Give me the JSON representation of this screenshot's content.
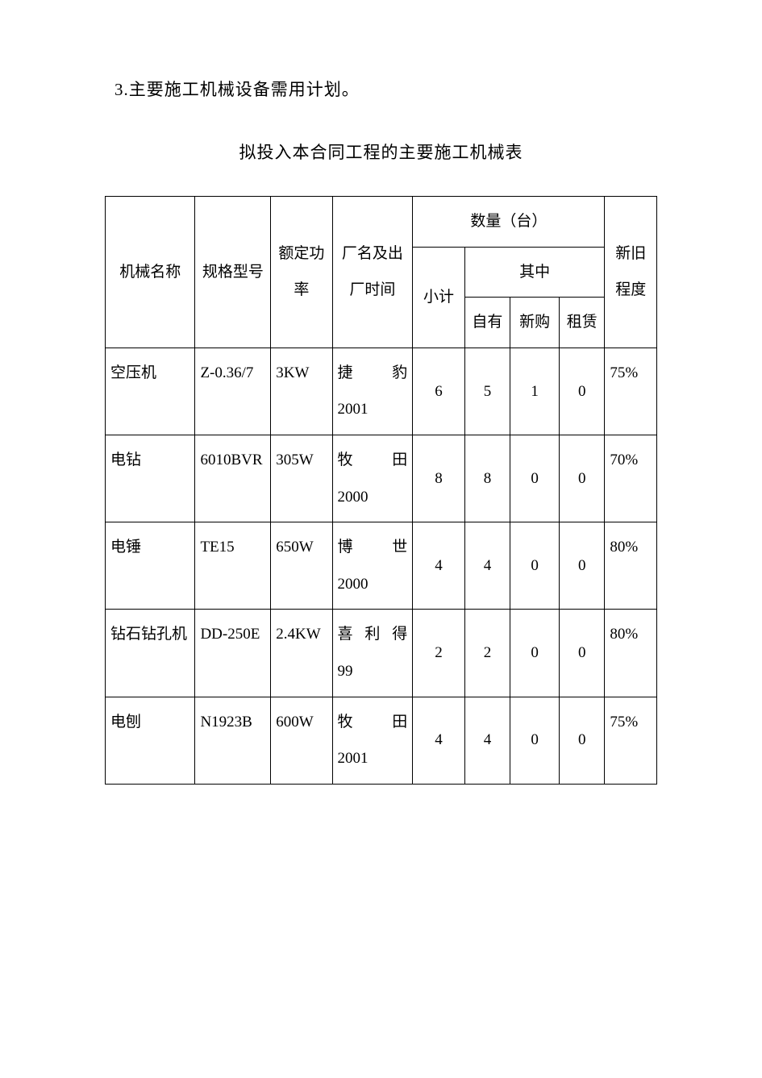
{
  "heading": "3.主要施工机械设备需用计划。",
  "tableTitle": "拟投入本合同工程的主要施工机械表",
  "headers": {
    "machineName": "机械名称",
    "specModel": "规格型号",
    "ratedPower": "额定功率",
    "factoryTime": "厂名及出厂时间",
    "quantityUnit": "数量（台）",
    "subtotal": "小计",
    "ofWhich": "其中",
    "selfOwned": "自有",
    "newPurchase": "新购",
    "lease": "租赁",
    "condition": "新旧程度"
  },
  "rows": [
    {
      "name": "空压机",
      "spec": "Z-0.36/7",
      "power": "3KW",
      "factoryName": "捷豹",
      "factoryYear": "2001",
      "subtotal": "6",
      "own": "5",
      "newBuy": "1",
      "rent": "0",
      "condition": "75%"
    },
    {
      "name": "电钻",
      "spec": "6010BVR",
      "power": "305W",
      "factoryName": "牧田",
      "factoryYear": "2000",
      "subtotal": "8",
      "own": "8",
      "newBuy": "0",
      "rent": "0",
      "condition": "70%"
    },
    {
      "name": "电锤",
      "spec": "TE15",
      "power": "650W",
      "factoryName": "博世",
      "factoryYear": "2000",
      "subtotal": "4",
      "own": "4",
      "newBuy": "0",
      "rent": "0",
      "condition": "80%"
    },
    {
      "name": "钻石钻孔机",
      "spec": "DD-250E",
      "power": "2.4KW",
      "factoryName": "喜利得",
      "factoryYear": "99",
      "subtotal": "2",
      "own": "2",
      "newBuy": "0",
      "rent": "0",
      "condition": "80%"
    },
    {
      "name": "电刨",
      "spec": "N1923B",
      "power": "600W",
      "factoryName": "牧田",
      "factoryYear": "2001",
      "subtotal": "4",
      "own": "4",
      "newBuy": "0",
      "rent": "0",
      "condition": "75%"
    }
  ],
  "styling": {
    "background_color": "#ffffff",
    "text_color": "#000000",
    "border_color": "#000000",
    "font_family": "SimSun",
    "heading_fontsize": 21,
    "table_fontsize": 19,
    "border_width": 1.2,
    "line_height": 2.4
  }
}
